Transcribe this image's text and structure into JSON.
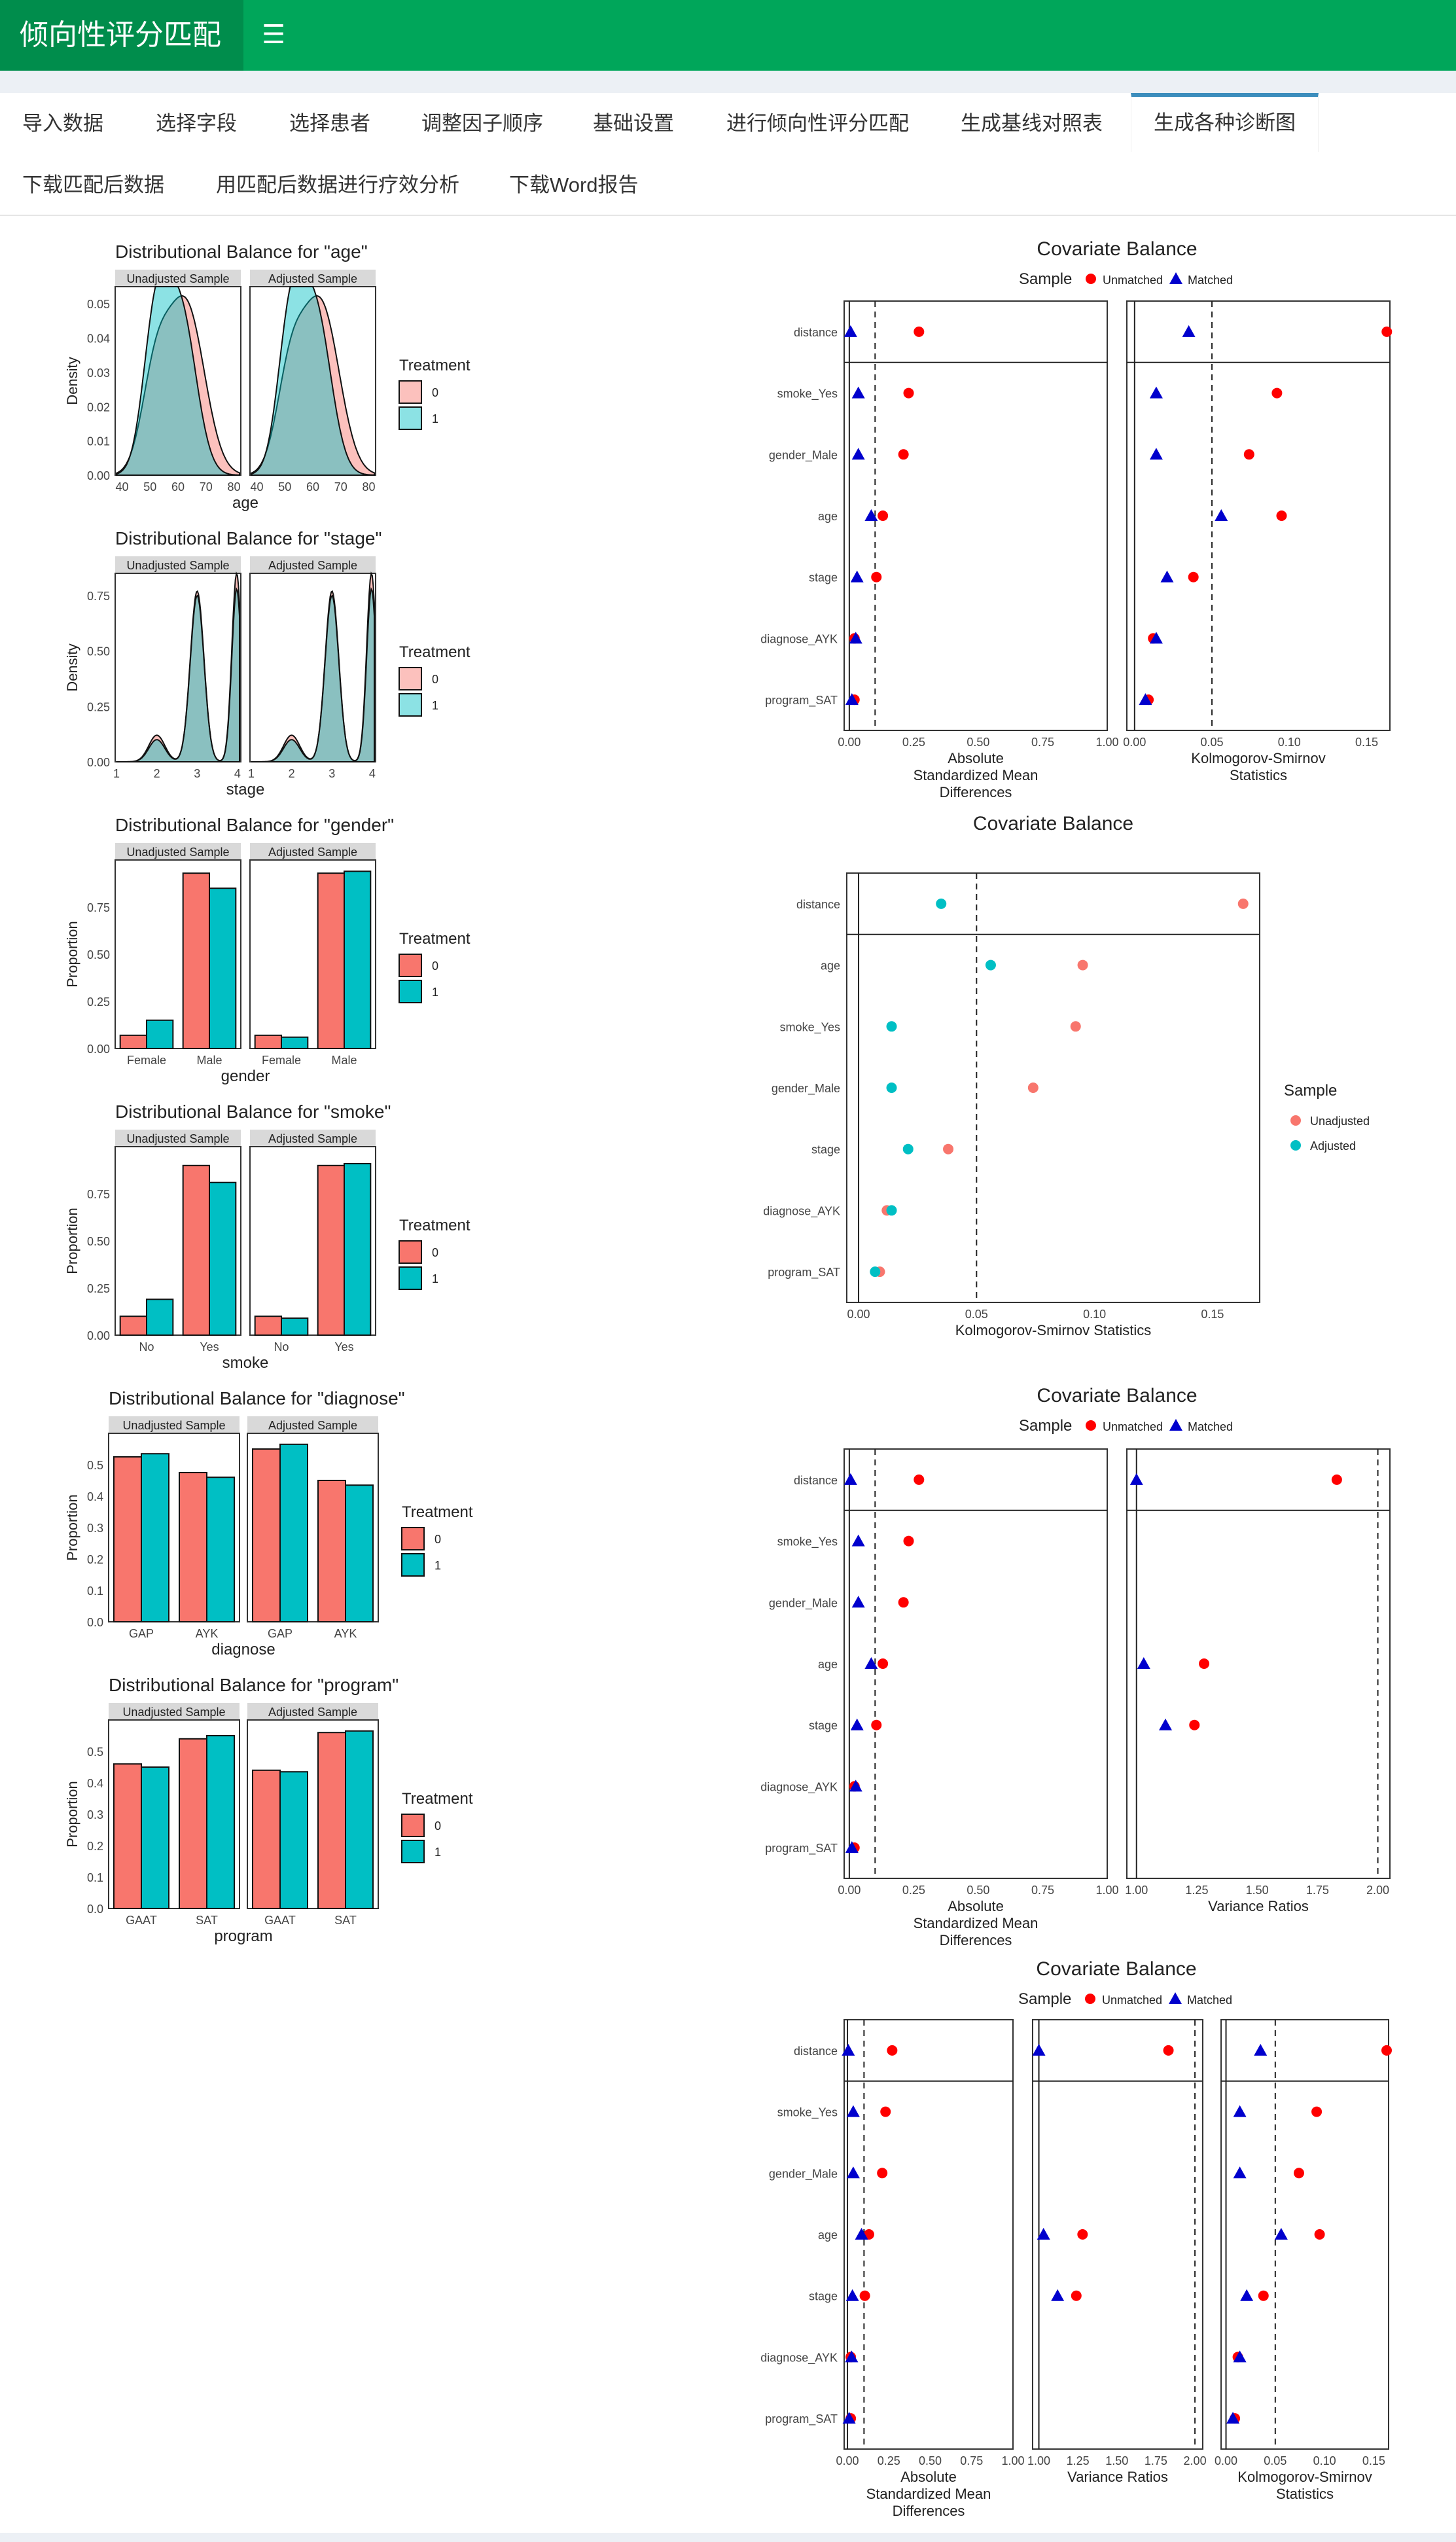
{
  "app": {
    "title": "倾向性评分匹配",
    "menu_icon": "hamburger-icon"
  },
  "tabs": [
    {
      "label": "导入数据"
    },
    {
      "label": "选择字段"
    },
    {
      "label": "选择患者"
    },
    {
      "label": "调整因子顺序"
    },
    {
      "label": "基础设置"
    },
    {
      "label": "进行倾向性评分匹配"
    },
    {
      "label": "生成基线对照表"
    },
    {
      "label": "生成各种诊断图",
      "active": true
    },
    {
      "label": "下载匹配后数据"
    },
    {
      "label": "用匹配后数据进行疗效分析"
    },
    {
      "label": "下载Word报告"
    }
  ],
  "colors": {
    "header": "#00a65a",
    "brand": "#008d4c",
    "ctrl": "#f8766d",
    "trt": "#00bfc4",
    "unmatched": "#ff0000",
    "matched": "#0000cd"
  },
  "distribution_panels": [
    {
      "title": "Distributional Balance for \"age\"",
      "type": "density",
      "xlabel": "age",
      "ylabel": "Density",
      "facets": [
        "Unadjusted Sample",
        "Adjusted Sample"
      ],
      "xticks": [
        "40",
        "50",
        "60",
        "70",
        "80"
      ],
      "yticks": [
        "0.00",
        "0.01",
        "0.02",
        "0.03",
        "0.04",
        "0.05"
      ],
      "legend_title": "Treatment",
      "legend": [
        "0",
        "1"
      ]
    },
    {
      "title": "Distributional Balance for \"stage\"",
      "type": "density",
      "xlabel": "stage",
      "ylabel": "Density",
      "facets": [
        "Unadjusted Sample",
        "Adjusted Sample"
      ],
      "xticks": [
        "1",
        "2",
        "3",
        "4"
      ],
      "yticks": [
        "0.00",
        "0.25",
        "0.50",
        "0.75"
      ],
      "legend_title": "Treatment",
      "legend": [
        "0",
        "1"
      ]
    },
    {
      "title": "Distributional Balance for \"gender\"",
      "type": "bar",
      "xlabel": "gender",
      "ylabel": "Proportion",
      "facets": [
        "Unadjusted Sample",
        "Adjusted Sample"
      ],
      "categories": [
        "Female",
        "Male"
      ],
      "ymax": 1.0,
      "values": {
        "unadjusted": [
          [
            0.07,
            0.15
          ],
          [
            0.93,
            0.85
          ]
        ],
        "adjusted": [
          [
            0.07,
            0.06
          ],
          [
            0.93,
            0.94
          ]
        ]
      },
      "yticks": [
        "0.00",
        "0.25",
        "0.50",
        "0.75"
      ],
      "legend_title": "Treatment",
      "legend": [
        "0",
        "1"
      ]
    },
    {
      "title": "Distributional Balance for \"smoke\"",
      "type": "bar",
      "xlabel": "smoke",
      "ylabel": "Proportion",
      "facets": [
        "Unadjusted Sample",
        "Adjusted Sample"
      ],
      "categories": [
        "No",
        "Yes"
      ],
      "ymax": 1.0,
      "values": {
        "unadjusted": [
          [
            0.1,
            0.19
          ],
          [
            0.9,
            0.81
          ]
        ],
        "adjusted": [
          [
            0.1,
            0.09
          ],
          [
            0.9,
            0.91
          ]
        ]
      },
      "yticks": [
        "0.00",
        "0.25",
        "0.50",
        "0.75"
      ],
      "legend_title": "Treatment",
      "legend": [
        "0",
        "1"
      ]
    },
    {
      "title": "Distributional Balance for \"diagnose\"",
      "type": "bar",
      "xlabel": "diagnose",
      "ylabel": "Proportion",
      "facets": [
        "Unadjusted Sample",
        "Adjusted Sample"
      ],
      "categories": [
        "GAP",
        "AYK"
      ],
      "ymax": 0.6,
      "values": {
        "unadjusted": [
          [
            0.525,
            0.535
          ],
          [
            0.475,
            0.46
          ]
        ],
        "adjusted": [
          [
            0.55,
            0.565
          ],
          [
            0.45,
            0.435
          ]
        ]
      },
      "yticks": [
        "0.0",
        "0.1",
        "0.2",
        "0.3",
        "0.4",
        "0.5"
      ],
      "legend_title": "Treatment",
      "legend": [
        "0",
        "1"
      ]
    },
    {
      "title": "Distributional Balance for \"program\"",
      "type": "bar",
      "xlabel": "program",
      "ylabel": "Proportion",
      "facets": [
        "Unadjusted Sample",
        "Adjusted Sample"
      ],
      "categories": [
        "GAAT",
        "SAT"
      ],
      "ymax": 0.6,
      "values": {
        "unadjusted": [
          [
            0.46,
            0.45
          ],
          [
            0.54,
            0.55
          ]
        ],
        "adjusted": [
          [
            0.44,
            0.435
          ],
          [
            0.56,
            0.565
          ]
        ]
      },
      "yticks": [
        "0.0",
        "0.1",
        "0.2",
        "0.3",
        "0.4",
        "0.5"
      ],
      "legend_title": "Treatment",
      "legend": [
        "0",
        "1"
      ]
    }
  ],
  "covariates": [
    "distance",
    "smoke_Yes",
    "gender_Male",
    "age",
    "stage",
    "diagnose_AYK",
    "program_SAT"
  ],
  "chart_data": [
    {
      "type": "scatter",
      "title": "Covariate Balance",
      "legend_title": "Sample",
      "legend": [
        "Unmatched",
        "Matched"
      ],
      "panels": [
        {
          "xlabel": [
            "Absolute",
            "Standardized Mean",
            "Differences"
          ],
          "xlim": [
            -0.02,
            1.0
          ],
          "xticks": [
            "0.00",
            "0.25",
            "0.50",
            "0.75",
            "1.00"
          ],
          "xtick_vals": [
            0,
            0.25,
            0.5,
            0.75,
            1.0
          ],
          "threshold": 0.1,
          "unmatched": [
            0.27,
            0.23,
            0.21,
            0.13,
            0.105,
            0.02,
            0.02
          ],
          "matched": [
            0.005,
            0.035,
            0.035,
            0.085,
            0.03,
            0.025,
            0.01
          ]
        },
        {
          "xlabel": [
            "Kolmogorov-Smirnov",
            "Statistics"
          ],
          "xlim": [
            -0.005,
            0.165
          ],
          "xticks": [
            "0.00",
            "0.05",
            "0.10",
            "0.15"
          ],
          "xtick_vals": [
            0,
            0.05,
            0.1,
            0.15
          ],
          "threshold": 0.05,
          "unmatched": [
            0.163,
            0.092,
            0.074,
            0.095,
            0.038,
            0.012,
            0.009
          ],
          "matched": [
            0.035,
            0.014,
            0.014,
            0.056,
            0.021,
            0.014,
            0.007
          ]
        }
      ]
    },
    {
      "type": "scatter",
      "title": "Covariate Balance",
      "legend_title": "Sample",
      "legend": [
        "Unadjusted",
        "Adjusted"
      ],
      "panels": [
        {
          "xlabel": [
            "Kolmogorov-Smirnov Statistics"
          ],
          "xlim": [
            -0.005,
            0.17
          ],
          "xticks": [
            "0.00",
            "0.05",
            "0.10",
            "0.15"
          ],
          "xtick_vals": [
            0,
            0.05,
            0.1,
            0.15
          ],
          "threshold": 0.05,
          "unmatched": [
            0.163,
            0.095,
            0.092,
            0.074,
            0.038,
            0.012,
            0.009
          ],
          "matched": [
            0.035,
            0.056,
            0.014,
            0.014,
            0.021,
            0.014,
            0.007
          ]
        }
      ],
      "covariates": [
        "distance",
        "age",
        "smoke_Yes",
        "gender_Male",
        "stage",
        "diagnose_AYK",
        "program_SAT"
      ]
    },
    {
      "type": "scatter",
      "title": "Covariate Balance",
      "legend_title": "Sample",
      "legend": [
        "Unmatched",
        "Matched"
      ],
      "panels": [
        {
          "xlabel": [
            "Absolute",
            "Standardized Mean",
            "Differences"
          ],
          "xlim": [
            -0.02,
            1.0
          ],
          "xticks": [
            "0.00",
            "0.25",
            "0.50",
            "0.75",
            "1.00"
          ],
          "xtick_vals": [
            0,
            0.25,
            0.5,
            0.75,
            1.0
          ],
          "threshold": 0.1,
          "unmatched": [
            0.27,
            0.23,
            0.21,
            0.13,
            0.105,
            0.02,
            0.02
          ],
          "matched": [
            0.005,
            0.035,
            0.035,
            0.085,
            0.03,
            0.025,
            0.01
          ]
        },
        {
          "xlabel": [
            "Variance Ratios"
          ],
          "xlim": [
            0.96,
            2.05
          ],
          "xticks": [
            "1.00",
            "1.25",
            "1.50",
            "1.75",
            "2.00"
          ],
          "xtick_vals": [
            1,
            1.25,
            1.5,
            1.75,
            2.0
          ],
          "threshold": 2.0,
          "base": 1.0,
          "unmatched": [
            1.83,
            null,
            null,
            1.28,
            1.24,
            null,
            null
          ],
          "matched": [
            1.0,
            null,
            null,
            1.03,
            1.12,
            null,
            null
          ]
        }
      ]
    },
    {
      "type": "scatter",
      "title": "Covariate Balance",
      "legend_title": "Sample",
      "legend": [
        "Unmatched",
        "Matched"
      ],
      "panels": [
        {
          "xlabel": [
            "Absolute",
            "Standardized Mean",
            "Differences"
          ],
          "xlim": [
            -0.02,
            1.0
          ],
          "xticks": [
            "0.00",
            "0.25",
            "0.50",
            "0.75",
            "1.00"
          ],
          "xtick_vals": [
            0,
            0.25,
            0.5,
            0.75,
            1.0
          ],
          "threshold": 0.1,
          "unmatched": [
            0.27,
            0.23,
            0.21,
            0.13,
            0.105,
            0.02,
            0.02
          ],
          "matched": [
            0.005,
            0.035,
            0.035,
            0.085,
            0.03,
            0.025,
            0.01
          ]
        },
        {
          "xlabel": [
            "Variance Ratios"
          ],
          "xlim": [
            0.96,
            2.05
          ],
          "xticks": [
            "1.00",
            "1.25",
            "1.50",
            "1.75",
            "2.00"
          ],
          "xtick_vals": [
            1,
            1.25,
            1.5,
            1.75,
            2.0
          ],
          "threshold": 2.0,
          "base": 1.0,
          "unmatched": [
            1.83,
            null,
            null,
            1.28,
            1.24,
            null,
            null
          ],
          "matched": [
            1.0,
            null,
            null,
            1.03,
            1.12,
            null,
            null
          ]
        },
        {
          "xlabel": [
            "Kolmogorov-Smirnov",
            "Statistics"
          ],
          "xlim": [
            -0.005,
            0.165
          ],
          "xticks": [
            "0.00",
            "0.05",
            "0.10",
            "0.15"
          ],
          "xtick_vals": [
            0,
            0.05,
            0.1,
            0.15
          ],
          "threshold": 0.05,
          "unmatched": [
            0.163,
            0.092,
            0.074,
            0.095,
            0.038,
            0.012,
            0.009
          ],
          "matched": [
            0.035,
            0.014,
            0.014,
            0.056,
            0.021,
            0.014,
            0.007
          ]
        }
      ]
    }
  ]
}
